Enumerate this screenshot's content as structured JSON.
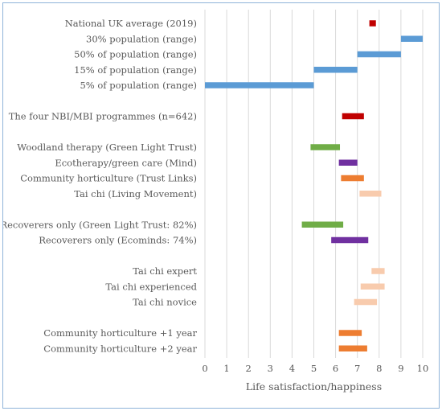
{
  "chart_data": {
    "type": "bar",
    "orientation": "horizontal-floating-range",
    "xlabel": "Life satisfaction/happiness",
    "xlim": [
      0,
      10
    ],
    "xticks": [
      "0",
      "1",
      "2",
      "3",
      "4",
      "5",
      "6",
      "7",
      "8",
      "9",
      "10"
    ],
    "grid": "vertical",
    "colors": {
      "dark_red": "#c00000",
      "blue": "#5b9bd5",
      "green": "#70ad47",
      "purple": "#7030a0",
      "orange": "#ed7d31",
      "peach": "#f8cbad",
      "grid": "#d9d9d9",
      "text": "#595959"
    },
    "categories": [
      {
        "label": "National UK average (2019)",
        "start": 7.55,
        "end": 7.85,
        "color": "dark_red"
      },
      {
        "label": "30% population (range)",
        "start": 9.0,
        "end": 10.0,
        "color": "blue"
      },
      {
        "label": "50% of population (range)",
        "start": 7.0,
        "end": 9.0,
        "color": "blue"
      },
      {
        "label": "15% of population (range)",
        "start": 5.0,
        "end": 7.0,
        "color": "blue"
      },
      {
        "label": "5% of population (range)",
        "start": 0.0,
        "end": 5.0,
        "color": "blue"
      },
      {
        "label": "",
        "start": null,
        "end": null,
        "color": null
      },
      {
        "label": "The four NBI/MBI programmes (n=642)",
        "start": 6.3,
        "end": 7.3,
        "color": "dark_red"
      },
      {
        "label": "",
        "start": null,
        "end": null,
        "color": null
      },
      {
        "label": "Woodland therapy (Green Light Trust)",
        "start": 4.85,
        "end": 6.2,
        "color": "green"
      },
      {
        "label": "Ecotherapy/green care (Mind)",
        "start": 6.15,
        "end": 7.0,
        "color": "purple"
      },
      {
        "label": "Community horticulture (Trust Links)",
        "start": 6.25,
        "end": 7.3,
        "color": "orange"
      },
      {
        "label": "Tai chi (Living Movement)",
        "start": 7.1,
        "end": 8.1,
        "color": "peach"
      },
      {
        "label": "",
        "start": null,
        "end": null,
        "color": null
      },
      {
        "label": "Recoverers only (Green Light Trust: 82%)",
        "start": 4.45,
        "end": 6.35,
        "color": "green"
      },
      {
        "label": "Recoverers only (Ecominds: 74%)",
        "start": 5.8,
        "end": 7.5,
        "color": "purple"
      },
      {
        "label": "",
        "start": null,
        "end": null,
        "color": null
      },
      {
        "label": "Tai chi expert",
        "start": 7.65,
        "end": 8.25,
        "color": "peach"
      },
      {
        "label": "Tai chi experienced",
        "start": 7.15,
        "end": 8.25,
        "color": "peach"
      },
      {
        "label": "Tai chi novice",
        "start": 6.85,
        "end": 7.9,
        "color": "peach"
      },
      {
        "label": "",
        "start": null,
        "end": null,
        "color": null
      },
      {
        "label": "Community horticulture +1 year",
        "start": 6.15,
        "end": 7.2,
        "color": "orange"
      },
      {
        "label": "Community horticulture +2 year",
        "start": 6.15,
        "end": 7.45,
        "color": "orange"
      }
    ]
  }
}
